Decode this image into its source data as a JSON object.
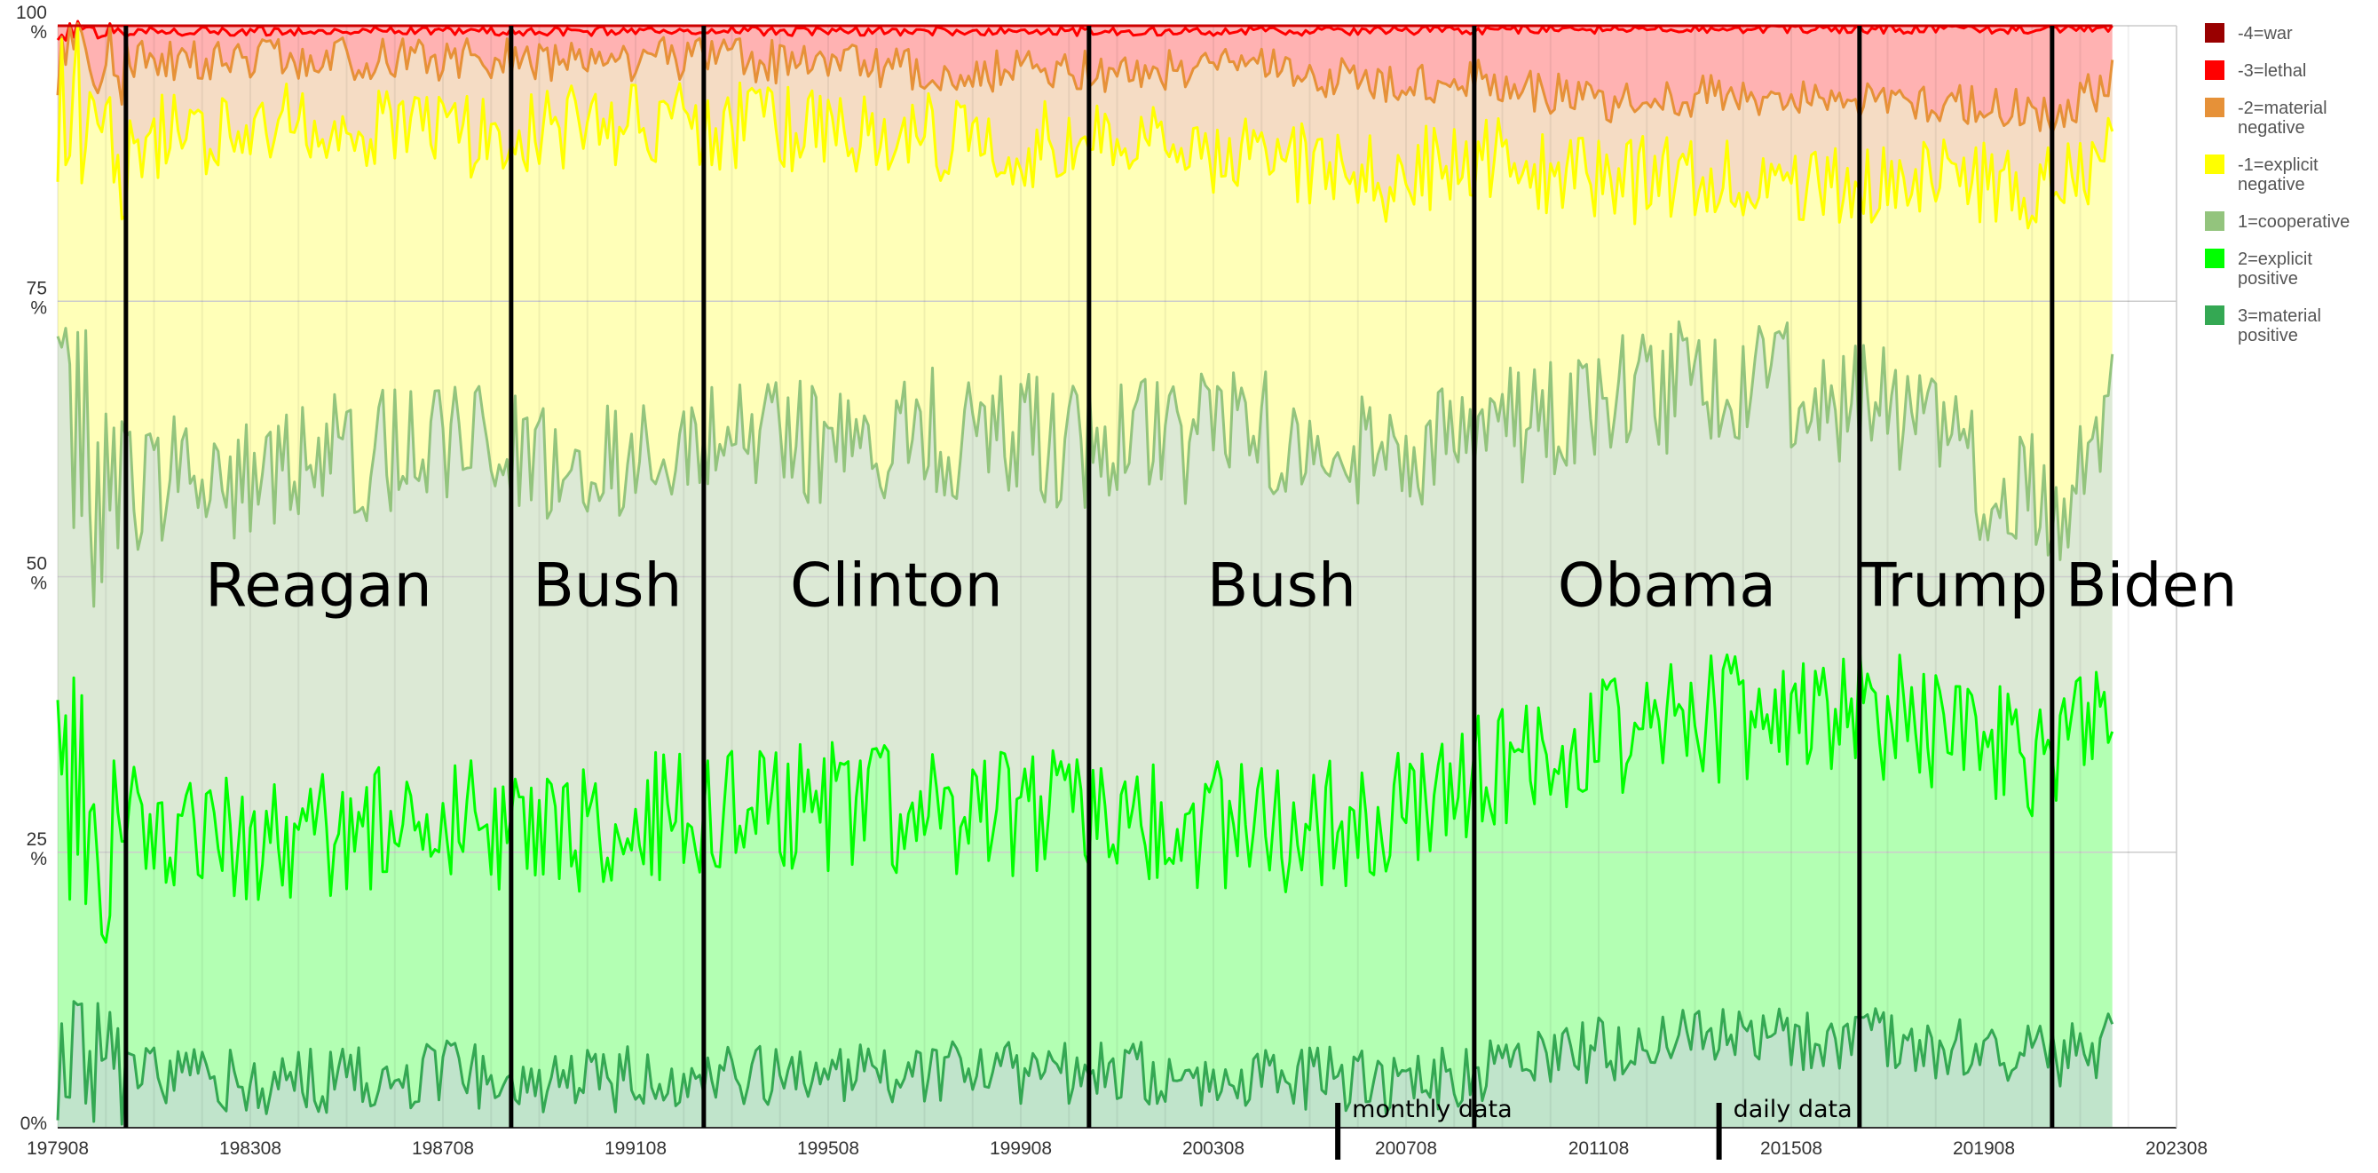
{
  "chart_data": {
    "type": "area",
    "stacking": "percent",
    "xlabel": "",
    "ylabel": "",
    "ylim": [
      0,
      100
    ],
    "x_range": [
      "197908",
      "202308"
    ],
    "x_tick_labels": [
      "197908",
      "198308",
      "198708",
      "199108",
      "199508",
      "199908",
      "200308",
      "200708",
      "201108",
      "201508",
      "201908",
      "202308"
    ],
    "y_tick_labels": [
      {
        "value": 0,
        "label": "0%"
      },
      {
        "value": 25,
        "label": "25 %"
      },
      {
        "value": 50,
        "label": "50 %"
      },
      {
        "value": 75,
        "label": "75 %"
      },
      {
        "value": 100,
        "label": "100 %"
      }
    ],
    "grid": true,
    "legend_position": "right",
    "legend": [
      {
        "label": "-4=war",
        "color": "#990000"
      },
      {
        "label": "-3=lethal",
        "color": "#ff0000"
      },
      {
        "label": "-2=material negative",
        "color": "#e69138"
      },
      {
        "label": "-1=explicit negative",
        "color": "#ffff00"
      },
      {
        "label": "1=cooperative",
        "color": "#93c47d"
      },
      {
        "label": "2=explicit positive",
        "color": "#00ff00"
      },
      {
        "label": "3=material positive",
        "color": "#34a853"
      }
    ],
    "cumulative_boundaries": {
      "note_units": "percent",
      "keypoints_x": [
        "197908",
        "198102",
        "198402",
        "198710",
        "198912",
        "199304",
        "199708",
        "200102",
        "200408",
        "200702",
        "200902",
        "201108",
        "201402",
        "201702",
        "201908",
        "202102",
        "202204"
      ],
      "material_positive": [
        6,
        5,
        4,
        5,
        4,
        5,
        5,
        5,
        5,
        4,
        5,
        7,
        8,
        8,
        7,
        6,
        8
      ],
      "explicit_positive": [
        30,
        27,
        26,
        28,
        27,
        29,
        29,
        28,
        27,
        28,
        32,
        36,
        37,
        38,
        35,
        33,
        38
      ],
      "cooperative": [
        60,
        58,
        60,
        62,
        60,
        62,
        63,
        62,
        63,
        62,
        63,
        66,
        68,
        66,
        59,
        56,
        66
      ],
      "explicit_negative": [
        94,
        90,
        91,
        90,
        91,
        91,
        90,
        89,
        88,
        86,
        88,
        86,
        86,
        86,
        86,
        85,
        88
      ],
      "material_negative": [
        98,
        97,
        97,
        97,
        97,
        97,
        96,
        96,
        96,
        95,
        95,
        93,
        94,
        93,
        93,
        92,
        95
      ],
      "lethal": [
        99.5,
        99.5,
        99.5,
        99.5,
        99.5,
        99.5,
        99.5,
        99.5,
        99.5,
        99.5,
        99.6,
        99.7,
        99.7,
        99.7,
        99.7,
        99.7,
        99.8
      ],
      "war": [
        100,
        100,
        100,
        100,
        100,
        100,
        100,
        100,
        100,
        100,
        100,
        100,
        100,
        100,
        100,
        100,
        100
      ]
    },
    "administrations": [
      {
        "label": "Reagan",
        "start": "198101",
        "end": "198901"
      },
      {
        "label": "Bush",
        "start": "198901",
        "end": "199301"
      },
      {
        "label": "Clinton",
        "start": "199301",
        "end": "200101"
      },
      {
        "label": "Bush",
        "start": "200101",
        "end": "200901"
      },
      {
        "label": "Obama",
        "start": "200901",
        "end": "201701"
      },
      {
        "label": "Trump",
        "start": "201701",
        "end": "202101"
      },
      {
        "label": "Biden",
        "start": "202101",
        "end": "202204"
      }
    ],
    "annotations": [
      {
        "label": "monthly data",
        "at": "200603"
      },
      {
        "label": "daily data",
        "at": "201402"
      }
    ]
  }
}
